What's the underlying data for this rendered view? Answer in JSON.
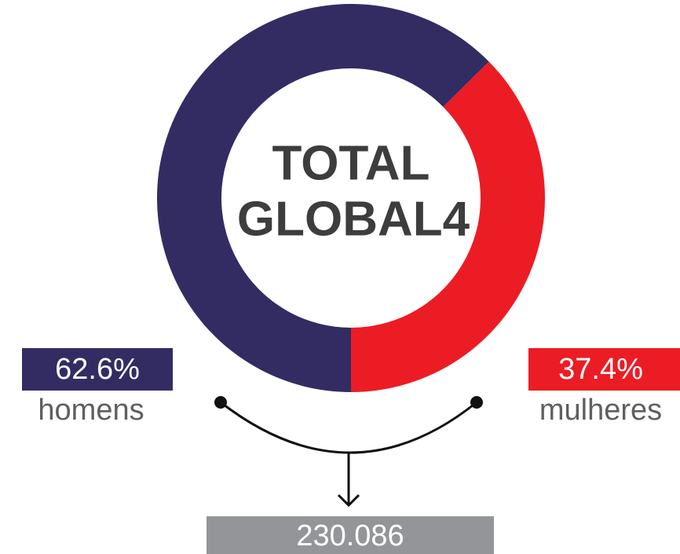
{
  "chart_data": {
    "type": "pie",
    "donut": true,
    "title_lines": [
      "TOTAL",
      "GLOBAL4"
    ],
    "categories": [
      "homens",
      "mulheres"
    ],
    "values": [
      62.6,
      37.4
    ],
    "value_labels": [
      "62.6%",
      "37.4%"
    ],
    "colors": [
      "#332c63",
      "#ec1c24"
    ],
    "total": "230.086",
    "total_color": "#939598"
  }
}
